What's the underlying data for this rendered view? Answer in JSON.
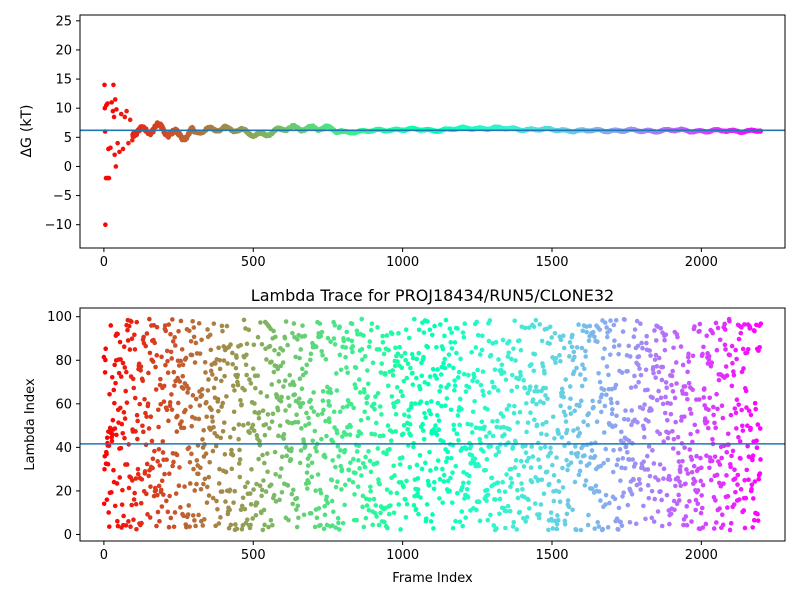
{
  "chart_data": [
    {
      "type": "scatter",
      "title": "",
      "xlabel": "",
      "ylabel": "ΔG (kT)",
      "ylabel_symbol": "ΔG",
      "ylabel_unit": "(kT)",
      "xlim": [
        -80,
        2280
      ],
      "ylim": [
        -14,
        26
      ],
      "xticks": [
        0,
        500,
        1000,
        1500,
        2000
      ],
      "yticks": [
        -10,
        -5,
        0,
        5,
        10,
        15,
        20,
        25
      ],
      "hline": 6.2,
      "hline_color": "#1f77b4",
      "colormap": "rainbow (reversed: red at frame 0, violet at frame 2200)",
      "n_points": 2200,
      "early_points": [
        {
          "x": 2,
          "y": 14.0
        },
        {
          "x": 32,
          "y": 14.0
        },
        {
          "x": 3,
          "y": 10.0
        },
        {
          "x": 8,
          "y": 10.5
        },
        {
          "x": 12,
          "y": 10.8
        },
        {
          "x": 4,
          "y": 6.0
        },
        {
          "x": 5,
          "y": -10.0
        },
        {
          "x": 7,
          "y": -2.0
        },
        {
          "x": 12,
          "y": -2.0
        },
        {
          "x": 17,
          "y": -2.0
        },
        {
          "x": 15,
          "y": 3.0
        },
        {
          "x": 22,
          "y": 3.2
        },
        {
          "x": 26,
          "y": 11.0
        },
        {
          "x": 30,
          "y": 9.5
        },
        {
          "x": 34,
          "y": 8.5
        },
        {
          "x": 38,
          "y": 11.5
        },
        {
          "x": 42,
          "y": 9.8
        },
        {
          "x": 36,
          "y": 2.0
        },
        {
          "x": 40,
          "y": 0.0
        },
        {
          "x": 46,
          "y": 4.0
        },
        {
          "x": 52,
          "y": 2.5
        },
        {
          "x": 58,
          "y": 9.0
        },
        {
          "x": 64,
          "y": 3.0
        },
        {
          "x": 70,
          "y": 8.5
        },
        {
          "x": 76,
          "y": 9.5
        },
        {
          "x": 82,
          "y": 4.0
        },
        {
          "x": 88,
          "y": 8.0
        },
        {
          "x": 95,
          "y": 4.5
        }
      ],
      "trend": [
        {
          "x": 100,
          "y": 6.5
        },
        {
          "x": 200,
          "y": 6.0
        },
        {
          "x": 300,
          "y": 5.6
        },
        {
          "x": 400,
          "y": 6.8
        },
        {
          "x": 500,
          "y": 5.4
        },
        {
          "x": 600,
          "y": 6.3
        },
        {
          "x": 700,
          "y": 6.8
        },
        {
          "x": 800,
          "y": 5.9
        },
        {
          "x": 900,
          "y": 6.1
        },
        {
          "x": 1000,
          "y": 6.4
        },
        {
          "x": 1100,
          "y": 6.2
        },
        {
          "x": 1200,
          "y": 6.5
        },
        {
          "x": 1300,
          "y": 6.6
        },
        {
          "x": 1400,
          "y": 6.4
        },
        {
          "x": 1500,
          "y": 6.3
        },
        {
          "x": 1600,
          "y": 6.1
        },
        {
          "x": 1700,
          "y": 6.2
        },
        {
          "x": 1800,
          "y": 6.1
        },
        {
          "x": 1900,
          "y": 6.2
        },
        {
          "x": 2000,
          "y": 6.1
        },
        {
          "x": 2200,
          "y": 6.1
        }
      ]
    },
    {
      "type": "scatter",
      "title": "Lambda Trace for PROJ18434/RUN5/CLONE32",
      "xlabel": "Frame Index",
      "ylabel": "Lambda Index",
      "xlim": [
        -80,
        2280
      ],
      "ylim": [
        -3,
        104
      ],
      "xticks": [
        0,
        500,
        1000,
        1500,
        2000
      ],
      "yticks": [
        0,
        20,
        40,
        60,
        80,
        100
      ],
      "hline": 41.6,
      "hline_color": "#1f77b4",
      "colormap": "rainbow (reversed: red at frame 0, violet at frame 2200)",
      "n_points": 2200,
      "value_range": [
        2,
        99
      ]
    }
  ]
}
